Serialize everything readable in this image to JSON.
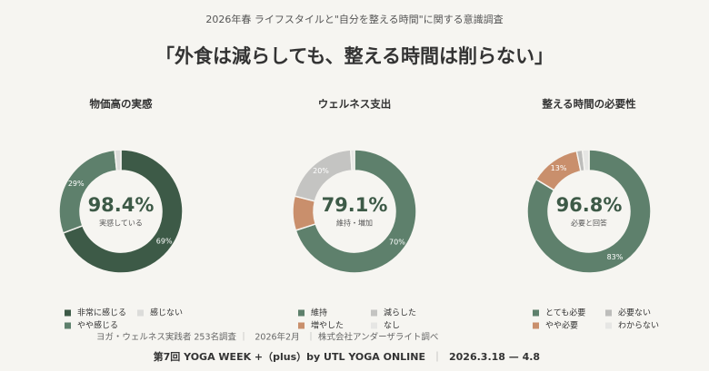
{
  "header": {
    "subtitle": "2026年春 ライフスタイルと\"自分を整える時間\"に関する意識調査",
    "title": "「外食は減らしても、整える時間は削らない」"
  },
  "chart_data": [
    {
      "type": "pie",
      "title": "物価高の実感",
      "center_text": "98.4%",
      "center_caption": "実感している",
      "categories": [
        "非常に感じる",
        "やや感じる",
        "感じない"
      ],
      "values": [
        69,
        29,
        1.6
      ],
      "value_labels": [
        "69%",
        "29%",
        null
      ],
      "colors": [
        "#3d5a47",
        "#5e806c",
        "#dcdcda"
      ]
    },
    {
      "type": "pie",
      "title": "ウェルネス支出",
      "center_text": "79.1%",
      "center_caption": "維持・増加",
      "categories": [
        "維持",
        "増やした",
        "減らした",
        "なし"
      ],
      "values": [
        70,
        9,
        20,
        1
      ],
      "value_labels": [
        "70%",
        null,
        "20%",
        null
      ],
      "colors": [
        "#5e806c",
        "#c98f6c",
        "#c4c4c2",
        "#e6e6e4"
      ]
    },
    {
      "type": "pie",
      "title": "整える時間の必要性",
      "center_text": "96.8%",
      "center_caption": "必要と回答",
      "categories": [
        "とても必要",
        "やや必要",
        "必要ない",
        "わからない"
      ],
      "values": [
        83,
        13,
        1.5,
        1.7
      ],
      "value_labels": [
        "83%",
        "13%",
        null,
        null
      ],
      "colors": [
        "#5e806c",
        "#c98f6c",
        "#bdbdbb",
        "#e6e6e4"
      ]
    }
  ],
  "footer": {
    "source": [
      "ヨガ・ウェルネス実践者 253名調査",
      "2026年2月",
      "株式会社アンダーザライト調べ"
    ],
    "event": "第7回 YOGA WEEK +（plus）by UTL YOGA ONLINE",
    "dates": "2026.3.18 — 4.8"
  }
}
